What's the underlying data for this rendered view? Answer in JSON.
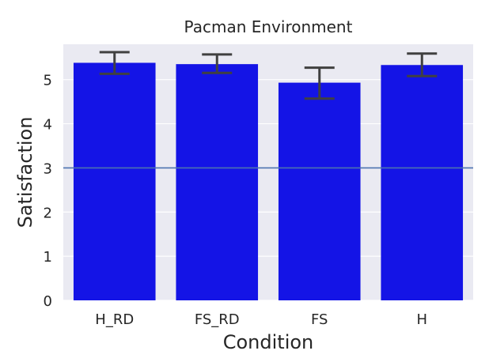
{
  "chart_data": {
    "type": "bar",
    "title": "Pacman Environment",
    "xlabel": "Condition",
    "ylabel": "Satisfaction",
    "categories": [
      "H_RD",
      "FS_RD",
      "FS",
      "H"
    ],
    "values": [
      5.38,
      5.35,
      4.93,
      5.33
    ],
    "error_bars": [
      {
        "low": 5.13,
        "high": 5.62
      },
      {
        "low": 5.15,
        "high": 5.57
      },
      {
        "low": 4.57,
        "high": 5.27
      },
      {
        "low": 5.08,
        "high": 5.59
      }
    ],
    "ylim": [
      0,
      5.8
    ],
    "yticks": [
      0,
      1,
      2,
      3,
      4,
      5
    ],
    "reference_line": 3,
    "grid": true,
    "bar_color": "#1414e6",
    "errorbar_color": "#404040",
    "reference_line_color": "#4c72b0",
    "background_color": "#eaeaf2"
  }
}
